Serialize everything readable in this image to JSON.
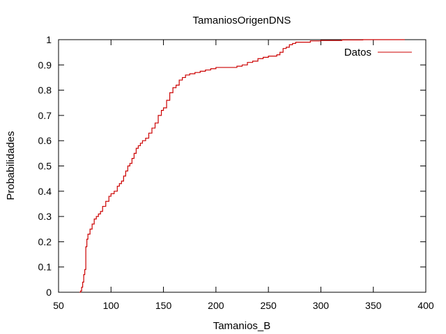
{
  "chart_data": {
    "type": "line",
    "title": "TamaniosOrigenDNS",
    "xlabel": "Tamanios_B",
    "ylabel": "Probabilidades",
    "xlim": [
      50,
      400
    ],
    "ylim": [
      0,
      1
    ],
    "xticks": [
      "50",
      "100",
      "150",
      "200",
      "250",
      "300",
      "350",
      "400"
    ],
    "yticks": [
      "0",
      "0.1",
      "0.2",
      "0.3",
      "0.4",
      "0.5",
      "0.6",
      "0.7",
      "0.8",
      "0.9",
      "1"
    ],
    "grid": false,
    "legend_position": "top-right",
    "line_style": "step",
    "series": [
      {
        "name": "Datos",
        "color": "#cc0000",
        "x": [
          70,
          71,
          72,
          73,
          74,
          75,
          76,
          77,
          78,
          80,
          82,
          84,
          86,
          88,
          90,
          92,
          95,
          98,
          100,
          103,
          106,
          108,
          110,
          112,
          114,
          116,
          118,
          120,
          122,
          124,
          126,
          128,
          130,
          133,
          136,
          139,
          142,
          145,
          148,
          150,
          153,
          156,
          159,
          162,
          165,
          168,
          171,
          175,
          180,
          185,
          190,
          195,
          200,
          210,
          220,
          225,
          230,
          235,
          240,
          245,
          250,
          255,
          258,
          261,
          264,
          267,
          270,
          273,
          276,
          280,
          290,
          300,
          320,
          340,
          360,
          380
        ],
        "values": [
          0.0,
          0.005,
          0.02,
          0.04,
          0.07,
          0.09,
          0.18,
          0.21,
          0.23,
          0.25,
          0.27,
          0.29,
          0.3,
          0.31,
          0.32,
          0.34,
          0.36,
          0.38,
          0.39,
          0.4,
          0.42,
          0.43,
          0.44,
          0.46,
          0.48,
          0.5,
          0.51,
          0.53,
          0.55,
          0.57,
          0.58,
          0.59,
          0.6,
          0.61,
          0.63,
          0.65,
          0.67,
          0.7,
          0.72,
          0.73,
          0.76,
          0.79,
          0.81,
          0.82,
          0.84,
          0.85,
          0.86,
          0.865,
          0.87,
          0.875,
          0.88,
          0.885,
          0.89,
          0.89,
          0.895,
          0.9,
          0.91,
          0.915,
          0.925,
          0.93,
          0.935,
          0.935,
          0.94,
          0.95,
          0.965,
          0.97,
          0.98,
          0.985,
          0.99,
          0.99,
          0.995,
          0.997,
          0.999,
          1.0,
          1.0,
          1.0
        ]
      }
    ]
  }
}
